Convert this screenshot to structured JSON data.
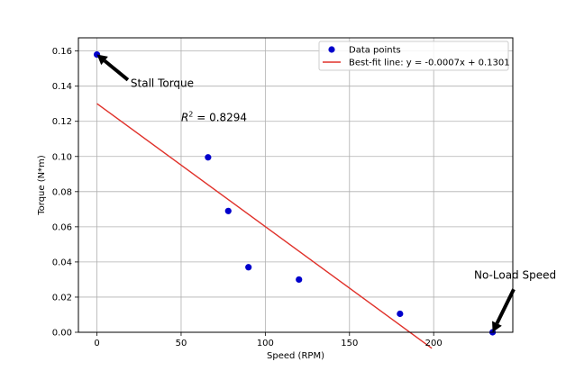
{
  "chart_data": {
    "type": "scatter",
    "title": "",
    "xlabel": "Speed (RPM)",
    "ylabel": "Torque (N*m)",
    "xlim": [
      -11,
      247
    ],
    "ylim": [
      0,
      0.1675
    ],
    "xticks": [
      0,
      50,
      100,
      150,
      200
    ],
    "xtick_labels": [
      "0",
      "50",
      "100",
      "150",
      "200"
    ],
    "yticks": [
      0.0,
      0.02,
      0.04,
      0.06,
      0.08,
      0.1,
      0.12,
      0.14,
      0.16
    ],
    "ytick_labels": [
      "0.00",
      "0.02",
      "0.04",
      "0.06",
      "0.08",
      "0.10",
      "0.12",
      "0.14",
      "0.16"
    ],
    "grid": true,
    "legend_position": "top-right",
    "series": [
      {
        "name": "Data points",
        "kind": "scatter",
        "color": "#0000cc",
        "x": [
          0,
          66,
          78,
          90,
          120,
          180,
          235
        ],
        "y": [
          0.158,
          0.0995,
          0.069,
          0.037,
          0.03,
          0.0105,
          0.0
        ]
      },
      {
        "name": "Best-fit line: y = -0.0007x + 0.1301",
        "kind": "line",
        "color": "#e0312a",
        "slope": -0.0007,
        "intercept": 0.1301,
        "x": [
          0,
          198.9
        ]
      }
    ],
    "annotations": [
      {
        "text": "Stall Torque",
        "point": [
          0,
          0.158
        ],
        "text_at": [
          20,
          0.1395
        ]
      },
      {
        "text": "No-Load Speed",
        "point": [
          235,
          0.0
        ],
        "text_at": [
          224,
          0.0306
        ]
      }
    ],
    "r2_text": {
      "prefix": "R",
      "sup": "2",
      "value": " = 0.8294",
      "at": [
        50,
        0.1202
      ]
    }
  }
}
